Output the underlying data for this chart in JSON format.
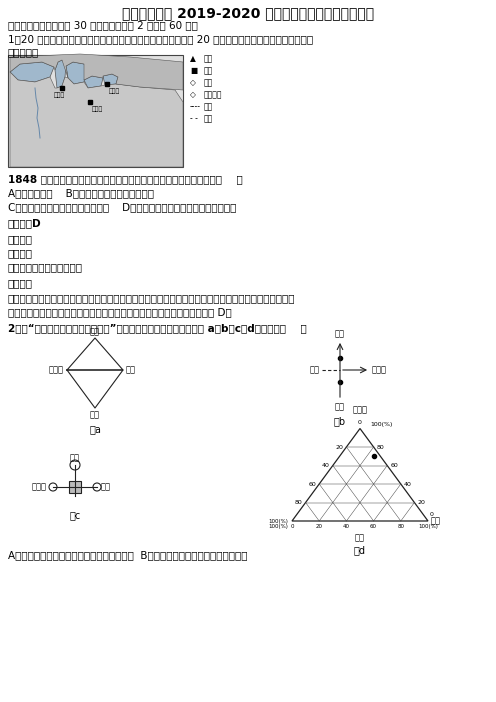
{
  "title": "江苏省宿迁市 2019-2020 学年地理高一下期末调研试题",
  "section1": "一、单选题（本题包括 30 个小题，每小题 2 分，共 60 分）",
  "q1_text1": "1．20 世纪上半叶，芝加哥发展以钉鐵为主导的重工业，并成为 20 世纪美国最大的钉鐵工业基地。据此",
  "q1_text2": "完成下题。",
  "q1_sub": "1848 年后，芝加哥成为美国中西部农产品集散中心的主导区位条件是（    ）",
  "q1_A": "A．滨临五大湖    B．位于美国中西部的中心位置",
  "q1_C": "C．位于密西西比河航运的上游起点    D．位于密西西比河与五大湖的转运地点",
  "answer1": "【答案】D",
  "analysis_title": "【解析】",
  "analysis_sub": "【分析】",
  "analysis_content": "考查商业中心形成的条件。",
  "detail_title": "【详解】",
  "detail1": "从图中可以看出芝加哥位于联系密西西比河水系和五大湖水系的中点，所以影响芝加哥成为美国中西部农",
  "detail2": "产品集散中心的主导区位条件是位于密西西比河与五大湖的转运地点，故选 D。",
  "q2_text": "2．读“几种常见工业导向型模式图”，判断工厂区位选择依次与图示 a、b、c、d对应的是（    ）",
  "q2_ans": "A．微电子厂、维织厂、汽车厂、电子装配厂  B．芯片厂、服装厂、制糖厂、炼铝厂",
  "bg_color": "#ffffff",
  "text_color": "#000000"
}
